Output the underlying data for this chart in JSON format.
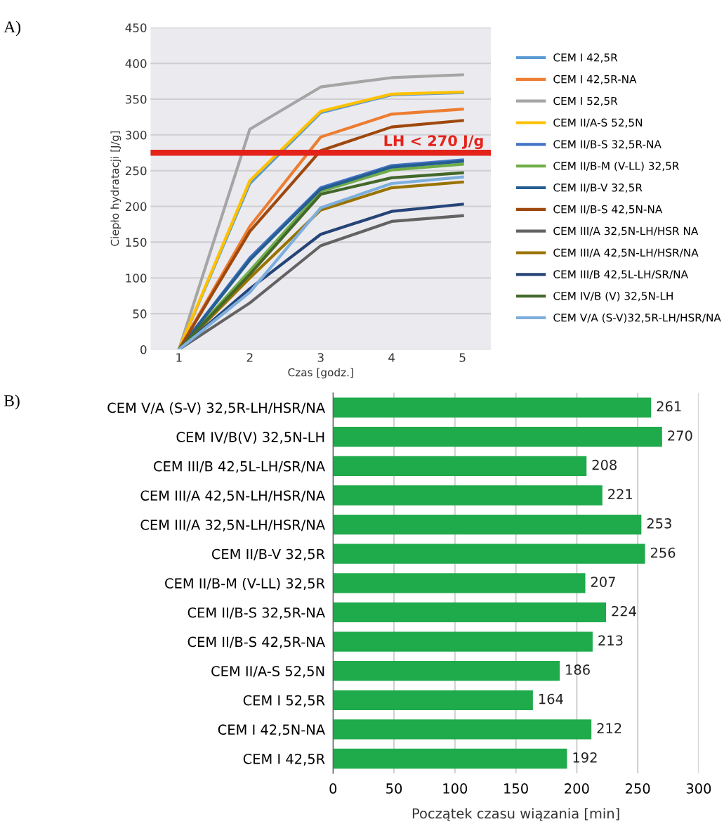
{
  "chart_data": [
    {
      "type": "line",
      "xlabel": "Czas [godz.]",
      "ylabel": "Ciepło hydratacji [J/g]",
      "annotations": [
        "A)"
      ],
      "x": [
        1,
        2,
        3,
        4,
        5
      ],
      "xlim": [
        0.6,
        5.4
      ],
      "xticks": [
        1,
        2,
        3,
        4,
        5
      ],
      "ylim": [
        0,
        450
      ],
      "yticks": [
        0,
        50,
        100,
        150,
        200,
        250,
        300,
        350,
        400,
        450
      ],
      "grid": "y",
      "legend": "right",
      "marker": "none",
      "line_style": "solid",
      "ref_lines": [
        {
          "axis": "y",
          "value": 275,
          "label": "LH < 270 J/g",
          "color": "#e3231a"
        }
      ],
      "series": [
        {
          "name": "CEM I 42,5R",
          "color": "#5b9bd5",
          "values": [
            0,
            232,
            331,
            356,
            359
          ]
        },
        {
          "name": "CEM I 42,5R-NA",
          "color": "#ed7d31",
          "values": [
            0,
            172,
            297,
            329,
            336
          ]
        },
        {
          "name": "CEM I 52,5R",
          "color": "#a5a5a5",
          "values": [
            0,
            308,
            367,
            380,
            384
          ]
        },
        {
          "name": "CEM II/A-S 52,5N",
          "color": "#ffc000",
          "values": [
            0,
            236,
            333,
            357,
            360
          ]
        },
        {
          "name": "CEM II/B-S 32,5R-NA",
          "color": "#4472c4",
          "values": [
            0,
            128,
            226,
            257,
            265
          ]
        },
        {
          "name": "CEM II/B-M (V-LL) 32,5R",
          "color": "#70ad47",
          "values": [
            0,
            110,
            221,
            251,
            259
          ]
        },
        {
          "name": "CEM II/B-V 32,5R",
          "color": "#255e91",
          "values": [
            0,
            125,
            224,
            255,
            263
          ]
        },
        {
          "name": "CEM II/B-S 42,5N-NA",
          "color": "#9e480e",
          "values": [
            0,
            165,
            278,
            311,
            320
          ]
        },
        {
          "name": "CEM III/A 32,5N-LH/HSR NA",
          "color": "#636363",
          "values": [
            0,
            65,
            145,
            179,
            187
          ]
        },
        {
          "name": "CEM III/A 42,5N-LH/HSR/NA",
          "color": "#997300",
          "values": [
            0,
            100,
            195,
            226,
            234
          ]
        },
        {
          "name": "CEM III/B 42,5L-LH/SR/NA",
          "color": "#264478",
          "values": [
            0,
            85,
            161,
            193,
            203
          ]
        },
        {
          "name": "CEM IV/B (V) 32,5N-LH",
          "color": "#43682b",
          "values": [
            0,
            105,
            217,
            240,
            247
          ]
        },
        {
          "name": "CEM V/A (S-V)32,5R-LH/HSR/NA",
          "color": "#7cafdd",
          "values": [
            0,
            80,
            198,
            232,
            241
          ]
        }
      ]
    },
    {
      "type": "bar",
      "orientation": "horizontal",
      "xlabel": "Początek czasu wiązania [min]",
      "annotations": [
        "B)"
      ],
      "categories": [
        "CEM V/A (S-V) 32,5R-LH/HSR/NA",
        "CEM IV/B(V) 32,5N-LH",
        "CEM III/B 42,5L-LH/SR/NA",
        "CEM III/A 42,5N-LH/HSR/NA",
        "CEM III/A 32,5N-LH/HSR/NA",
        "CEM II/B-V 32,5R",
        "CEM II/B-M (V-LL) 32,5R",
        "CEM II/B-S 32,5R-NA",
        "CEM II/B-S 42,5R-NA",
        "CEM II/A-S 52,5N",
        "CEM I 52,5R",
        "CEM I 42,5N-NA",
        "CEM I 42,5R"
      ],
      "values": [
        261,
        270,
        208,
        221,
        253,
        256,
        207,
        224,
        213,
        186,
        164,
        212,
        192
      ],
      "color": "#1faa4b",
      "xlim": [
        0,
        300
      ],
      "xticks": [
        0,
        50,
        100,
        150,
        200,
        250,
        300
      ],
      "grid": "x",
      "data_labels": true
    }
  ]
}
